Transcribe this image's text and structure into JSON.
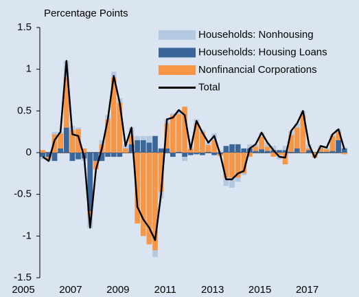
{
  "chart_data": {
    "type": "stacked-bar-line",
    "ylabel": "Percentage Points",
    "categories": [
      "2005",
      null,
      null,
      null,
      null,
      null,
      null,
      null,
      "2007",
      null,
      null,
      null,
      null,
      null,
      null,
      null,
      "2009",
      null,
      null,
      null,
      null,
      null,
      null,
      null,
      "2011",
      null,
      null,
      null,
      null,
      null,
      null,
      null,
      "2013",
      null,
      null,
      null,
      null,
      null,
      null,
      null,
      "2015",
      null,
      null,
      null,
      null,
      null,
      null,
      null,
      "2017",
      null,
      null,
      null
    ],
    "series": [
      {
        "name": "Households: Nonhousing",
        "color": "#b4c8e1",
        "kind": "bar",
        "values": [
          -0.03,
          -0.02,
          0.03,
          0.02,
          0.2,
          0.05,
          0.02,
          -0.03,
          -0.15,
          0,
          0.05,
          0.05,
          0.07,
          0.05,
          0.05,
          0.1,
          0.05,
          0.05,
          0.08,
          -0.08,
          -0.08,
          0.05,
          0.02,
          0.05,
          -0.05,
          0.02,
          0.05,
          0.02,
          0.03,
          0.08,
          0.02,
          -0.1,
          -0.12,
          -0.05,
          -0.02,
          0.05,
          0.03,
          0.05,
          0.05,
          0.05,
          -0.05,
          0.05,
          0.05,
          0.05,
          0.05,
          0.05,
          0,
          0.02,
          0.02,
          0.02,
          0.03,
          0.01
        ]
      },
      {
        "name": "Households: Housing Loans",
        "color": "#3a6699",
        "kind": "bar",
        "values": [
          -0.05,
          -0.05,
          -0.1,
          0.05,
          0.3,
          -0.1,
          -0.08,
          -0.07,
          -0.7,
          -0.1,
          -0.1,
          -0.05,
          -0.05,
          -0.05,
          0,
          0.1,
          0.15,
          0.15,
          0.12,
          0.2,
          0.05,
          0.05,
          -0.05,
          0.01,
          -0.05,
          -0.03,
          -0.02,
          -0.03,
          0.01,
          -0.03,
          -0.02,
          0.08,
          0.1,
          0.1,
          0.05,
          0.05,
          0.02,
          0.04,
          0.02,
          0.03,
          0.03,
          0.03,
          0.01,
          0.05,
          0,
          0.03,
          0,
          0.01,
          0.01,
          0.02,
          0.15,
          0.05
        ]
      },
      {
        "name": "Nonfinancial Corporations",
        "color": "#f79646",
        "kind": "bar",
        "values": [
          0.03,
          -0.03,
          0.22,
          0.18,
          0.6,
          0.27,
          0.28,
          0.05,
          -0.05,
          -0.1,
          0.1,
          0.4,
          0.9,
          0.6,
          0.05,
          0.1,
          -0.85,
          -1.0,
          -1.1,
          -1.17,
          -0.47,
          0.3,
          0.45,
          0.45,
          0.55,
          0.05,
          0.35,
          0.25,
          0.08,
          0.15,
          -0.02,
          -0.3,
          -0.3,
          -0.3,
          -0.25,
          -0.05,
          0.05,
          0.15,
          0.05,
          -0.05,
          -0.03,
          -0.14,
          0.2,
          0.25,
          0.45,
          0.02,
          -0.06,
          0.05,
          0.03,
          0.18,
          0.1,
          -0.02
        ]
      },
      {
        "name": "Total",
        "color": "#000000",
        "kind": "line",
        "values": [
          -0.05,
          -0.1,
          0.15,
          0.25,
          1.1,
          0.22,
          0.2,
          -0.05,
          -0.9,
          -0.2,
          0.05,
          0.4,
          0.92,
          0.6,
          0.08,
          0.3,
          -0.65,
          -0.8,
          -0.9,
          -1.05,
          -0.5,
          0.4,
          0.42,
          0.51,
          0.45,
          0.04,
          0.38,
          0.24,
          0.12,
          0.2,
          -0.02,
          -0.32,
          -0.32,
          -0.25,
          -0.22,
          0.05,
          0.1,
          0.24,
          0.12,
          0.03,
          -0.05,
          -0.06,
          0.26,
          0.35,
          0.5,
          0.1,
          -0.06,
          0.08,
          0.06,
          0.22,
          0.28,
          0.04
        ]
      }
    ],
    "ylim": [
      -1.5,
      1.5
    ],
    "yticks": [
      -1.5,
      -1,
      -0.5,
      0,
      0.5,
      1,
      1.5
    ],
    "legend": "upper right"
  }
}
